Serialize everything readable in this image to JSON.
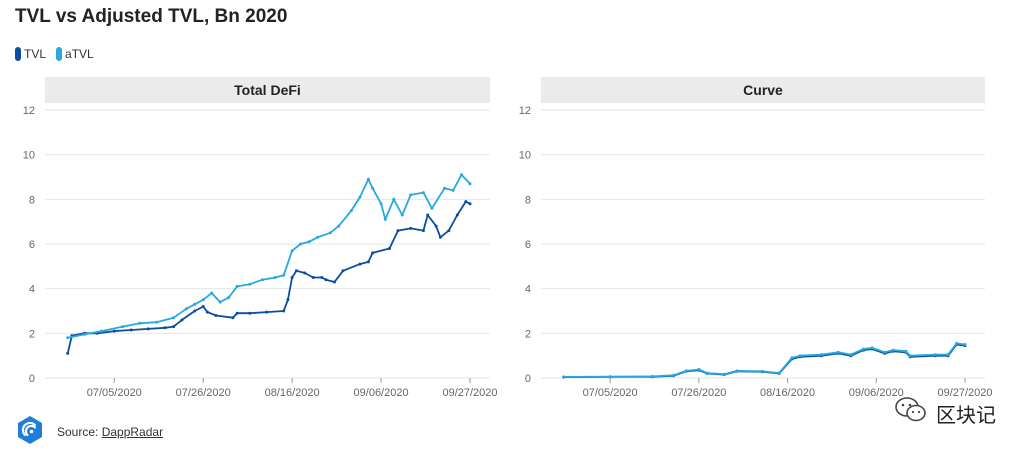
{
  "title": "TVL vs Adjusted TVL, Bn 2020",
  "legend": [
    {
      "label": "TVL",
      "color": "#0b4e9e"
    },
    {
      "label": "aTVL",
      "color": "#29a8e0"
    }
  ],
  "source": {
    "prefix": "Source:",
    "link_text": "DappRadar",
    "icon": "dappradar-logo-icon"
  },
  "watermark": {
    "text": "区块记",
    "icon": "wechat-icon"
  },
  "chart_data": [
    {
      "type": "line",
      "title": "Total DeFi",
      "x_type": "date",
      "ylim": [
        0,
        12
      ],
      "yticks": [
        0,
        2,
        4,
        6,
        8,
        10,
        12
      ],
      "xticks": [
        "07/05/2020",
        "07/26/2020",
        "08/16/2020",
        "09/06/2020",
        "09/27/2020"
      ],
      "grid": true,
      "series": [
        {
          "name": "TVL",
          "color": "#0b4e9e",
          "points": [
            [
              "2020-06-24",
              1.1
            ],
            [
              "2020-06-25",
              1.9
            ],
            [
              "2020-06-28",
              2.0
            ],
            [
              "2020-07-01",
              2.0
            ],
            [
              "2020-07-05",
              2.1
            ],
            [
              "2020-07-09",
              2.15
            ],
            [
              "2020-07-13",
              2.2
            ],
            [
              "2020-07-17",
              2.25
            ],
            [
              "2020-07-19",
              2.3
            ],
            [
              "2020-07-21",
              2.6
            ],
            [
              "2020-07-24",
              3.0
            ],
            [
              "2020-07-26",
              3.2
            ],
            [
              "2020-07-27",
              2.95
            ],
            [
              "2020-07-29",
              2.8
            ],
            [
              "2020-08-02",
              2.7
            ],
            [
              "2020-08-03",
              2.9
            ],
            [
              "2020-08-06",
              2.9
            ],
            [
              "2020-08-10",
              2.95
            ],
            [
              "2020-08-14",
              3.0
            ],
            [
              "2020-08-15",
              3.5
            ],
            [
              "2020-08-16",
              4.5
            ],
            [
              "2020-08-17",
              4.8
            ],
            [
              "2020-08-19",
              4.7
            ],
            [
              "2020-08-21",
              4.5
            ],
            [
              "2020-08-23",
              4.5
            ],
            [
              "2020-08-24",
              4.4
            ],
            [
              "2020-08-26",
              4.3
            ],
            [
              "2020-08-28",
              4.8
            ],
            [
              "2020-09-01",
              5.1
            ],
            [
              "2020-09-03",
              5.2
            ],
            [
              "2020-09-04",
              5.6
            ],
            [
              "2020-09-08",
              5.8
            ],
            [
              "2020-09-10",
              6.6
            ],
            [
              "2020-09-13",
              6.7
            ],
            [
              "2020-09-16",
              6.6
            ],
            [
              "2020-09-17",
              7.3
            ],
            [
              "2020-09-19",
              6.8
            ],
            [
              "2020-09-20",
              6.3
            ],
            [
              "2020-09-22",
              6.6
            ],
            [
              "2020-09-24",
              7.3
            ],
            [
              "2020-09-26",
              7.9
            ],
            [
              "2020-09-27",
              7.8
            ]
          ]
        },
        {
          "name": "aTVL",
          "color": "#29a8e0",
          "points": [
            [
              "2020-06-24",
              1.8
            ],
            [
              "2020-06-28",
              1.95
            ],
            [
              "2020-07-02",
              2.1
            ],
            [
              "2020-07-07",
              2.3
            ],
            [
              "2020-07-11",
              2.45
            ],
            [
              "2020-07-15",
              2.5
            ],
            [
              "2020-07-19",
              2.7
            ],
            [
              "2020-07-22",
              3.1
            ],
            [
              "2020-07-24",
              3.3
            ],
            [
              "2020-07-26",
              3.5
            ],
            [
              "2020-07-28",
              3.8
            ],
            [
              "2020-07-30",
              3.4
            ],
            [
              "2020-08-01",
              3.6
            ],
            [
              "2020-08-03",
              4.1
            ],
            [
              "2020-08-06",
              4.2
            ],
            [
              "2020-08-09",
              4.4
            ],
            [
              "2020-08-12",
              4.5
            ],
            [
              "2020-08-14",
              4.6
            ],
            [
              "2020-08-16",
              5.7
            ],
            [
              "2020-08-18",
              6.0
            ],
            [
              "2020-08-20",
              6.1
            ],
            [
              "2020-08-22",
              6.3
            ],
            [
              "2020-08-25",
              6.5
            ],
            [
              "2020-08-27",
              6.8
            ],
            [
              "2020-08-30",
              7.5
            ],
            [
              "2020-09-01",
              8.1
            ],
            [
              "2020-09-03",
              8.9
            ],
            [
              "2020-09-04",
              8.5
            ],
            [
              "2020-09-06",
              7.8
            ],
            [
              "2020-09-07",
              7.1
            ],
            [
              "2020-09-09",
              8.0
            ],
            [
              "2020-09-11",
              7.3
            ],
            [
              "2020-09-13",
              8.2
            ],
            [
              "2020-09-16",
              8.3
            ],
            [
              "2020-09-18",
              7.6
            ],
            [
              "2020-09-21",
              8.5
            ],
            [
              "2020-09-23",
              8.4
            ],
            [
              "2020-09-25",
              9.1
            ],
            [
              "2020-09-27",
              8.7
            ]
          ]
        }
      ]
    },
    {
      "type": "line",
      "title": "Curve",
      "x_type": "date",
      "ylim": [
        0,
        12
      ],
      "yticks": [
        0,
        2,
        4,
        6,
        8,
        10,
        12
      ],
      "xticks": [
        "07/05/2020",
        "07/26/2020",
        "08/16/2020",
        "09/06/2020",
        "09/27/2020"
      ],
      "grid": true,
      "series": [
        {
          "name": "TVL",
          "color": "#0b4e9e",
          "points": [
            [
              "2020-06-24",
              0.04
            ],
            [
              "2020-07-05",
              0.05
            ],
            [
              "2020-07-15",
              0.06
            ],
            [
              "2020-07-20",
              0.1
            ],
            [
              "2020-07-23",
              0.3
            ],
            [
              "2020-07-26",
              0.35
            ],
            [
              "2020-07-28",
              0.2
            ],
            [
              "2020-08-01",
              0.15
            ],
            [
              "2020-08-04",
              0.3
            ],
            [
              "2020-08-10",
              0.28
            ],
            [
              "2020-08-14",
              0.2
            ],
            [
              "2020-08-17",
              0.85
            ],
            [
              "2020-08-19",
              0.95
            ],
            [
              "2020-08-24",
              1.0
            ],
            [
              "2020-08-28",
              1.1
            ],
            [
              "2020-08-31",
              1.0
            ],
            [
              "2020-09-03",
              1.25
            ],
            [
              "2020-09-05",
              1.3
            ],
            [
              "2020-09-08",
              1.1
            ],
            [
              "2020-09-10",
              1.2
            ],
            [
              "2020-09-13",
              1.15
            ],
            [
              "2020-09-14",
              0.95
            ],
            [
              "2020-09-20",
              1.0
            ],
            [
              "2020-09-23",
              1.0
            ],
            [
              "2020-09-25",
              1.5
            ],
            [
              "2020-09-27",
              1.45
            ]
          ]
        },
        {
          "name": "aTVL",
          "color": "#29a8e0",
          "points": [
            [
              "2020-06-24",
              0.05
            ],
            [
              "2020-07-05",
              0.06
            ],
            [
              "2020-07-15",
              0.07
            ],
            [
              "2020-07-20",
              0.12
            ],
            [
              "2020-07-23",
              0.32
            ],
            [
              "2020-07-26",
              0.38
            ],
            [
              "2020-07-28",
              0.22
            ],
            [
              "2020-08-01",
              0.17
            ],
            [
              "2020-08-04",
              0.32
            ],
            [
              "2020-08-10",
              0.3
            ],
            [
              "2020-08-14",
              0.22
            ],
            [
              "2020-08-17",
              0.9
            ],
            [
              "2020-08-19",
              1.0
            ],
            [
              "2020-08-24",
              1.05
            ],
            [
              "2020-08-28",
              1.15
            ],
            [
              "2020-08-31",
              1.05
            ],
            [
              "2020-09-03",
              1.3
            ],
            [
              "2020-09-05",
              1.35
            ],
            [
              "2020-09-08",
              1.15
            ],
            [
              "2020-09-10",
              1.25
            ],
            [
              "2020-09-13",
              1.2
            ],
            [
              "2020-09-14",
              1.0
            ],
            [
              "2020-09-20",
              1.05
            ],
            [
              "2020-09-23",
              1.05
            ],
            [
              "2020-09-25",
              1.55
            ],
            [
              "2020-09-27",
              1.5
            ]
          ]
        }
      ]
    }
  ]
}
